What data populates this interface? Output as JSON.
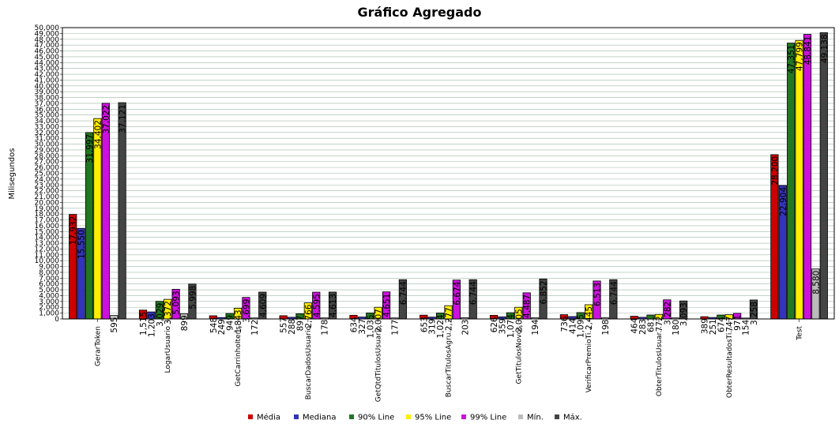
{
  "chart_data": {
    "type": "bar",
    "title": "Gráfico Agregado",
    "ylabel": "Milisegundos",
    "xlabel": "",
    "ylim": [
      0,
      50000
    ],
    "ytick_step": 1000,
    "grid": true,
    "legend_position": "bottom",
    "categories": [
      "GerarToken",
      "LogarUsuario",
      "GetCarrinhoItens",
      "BuscarDadosUsuario",
      "GetQtdTitulosUsuario",
      "BuscarTitulosAgrupados",
      "GetTitulosNovos",
      "VerificarPremioTitulos",
      "ObterTitulosUsuario",
      "ObterResultadosTitulos",
      "Test"
    ],
    "category_labels": [
      "GerarToken",
      "LogarUsuario",
      "GetCarrinhoItens",
      "BuscarDadosUsuario",
      "GetQtdTitulosUsuario",
      "BuscarTitulosAgru...",
      "GetTitulosNovos",
      "VerificarPremioTi...",
      "ObterTitulosUsuar...",
      "ObterResultadosTi...",
      "Test"
    ],
    "series": [
      {
        "name": "Média",
        "color": "#cc0000",
        "values": [
          17932,
          1515,
          548,
          557,
          634,
          653,
          626,
          736,
          464,
          389,
          28200
        ],
        "labels": [
          "17,932",
          "1,515",
          "548",
          "557",
          "634",
          "653",
          "626",
          "736",
          "464",
          "389",
          "28,200"
        ]
      },
      {
        "name": "Mediana",
        "color": "#3333bb",
        "values": [
          15550,
          1203,
          249,
          288,
          327,
          319,
          359,
          414,
          283,
          251,
          22904
        ],
        "labels": [
          "15,550",
          "1,203",
          "249",
          "288",
          "327",
          "319",
          "359",
          "414",
          "283",
          "251",
          "22,904"
        ]
      },
      {
        "name": "90% Line",
        "color": "#227722",
        "values": [
          31997,
          3029,
          949,
          897,
          1035,
          1024,
          1074,
          1095,
          681,
          674,
          47351
        ],
        "labels": [
          "31,997",
          "3,029",
          "949",
          "897",
          "1,035",
          "1,024",
          "1,074",
          "1,095",
          "681",
          "674",
          "47,351"
        ]
      },
      {
        "name": "95% Line",
        "color": "#ffee00",
        "values": [
          34402,
          3372,
          1843,
          2766,
          2007,
          2277,
          2005,
          2445,
          772,
          747,
          47799
        ],
        "labels": [
          "34,402",
          "3,372",
          "1,843",
          "2,766",
          "2,007",
          "2,277",
          "2,005",
          "2,445",
          "772",
          "747",
          "47,799"
        ]
      },
      {
        "name": "99% Line",
        "color": "#cc11dd",
        "values": [
          37022,
          5093,
          3699,
          4595,
          4651,
          6674,
          4487,
          6513,
          3282,
          971,
          48841
        ],
        "labels": [
          "37,022",
          "5,093",
          "3,699",
          "4,595",
          "4,651",
          "6,674",
          "4,487",
          "6,513",
          "3,282",
          "971",
          "48,841"
        ]
      },
      {
        "name": "Mín.",
        "color": "#bbbbbb",
        "values": [
          595,
          899,
          172,
          178,
          177,
          203,
          194,
          198,
          180,
          154,
          8580
        ],
        "labels": [
          "595",
          "899",
          "172",
          "178",
          "177",
          "203",
          "194",
          "198",
          "180",
          "154",
          "8,580"
        ]
      },
      {
        "name": "Máx.",
        "color": "#444444",
        "values": [
          37121,
          5998,
          4609,
          4613,
          6744,
          6744,
          6852,
          6744,
          3093,
          3258,
          49138
        ],
        "labels": [
          "37,121",
          "5,998",
          "4,609",
          "4,613",
          "6,744",
          "6,744",
          "6,852",
          "6,744",
          "3,093",
          "3,258",
          "49,138"
        ]
      }
    ]
  }
}
